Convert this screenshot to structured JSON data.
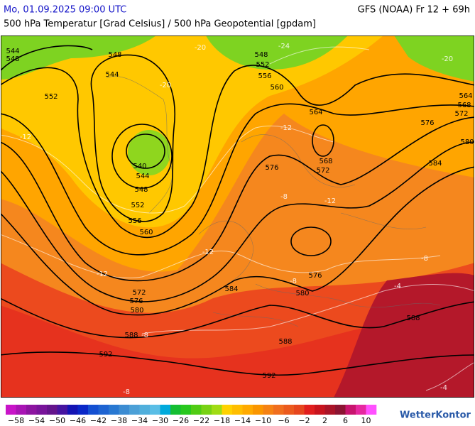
{
  "header": {
    "datetime": "Mo, 01.09.2025 09:00 UTC",
    "model": "GFS (NOAA) Fr 12 + 69h",
    "subtitle": "500 hPa Temperatur [Grad Celsius] / 500 hPa Geopotential [gpdam]"
  },
  "map": {
    "contour_labels": [
      "544",
      "548",
      "548",
      "544",
      "552",
      "540",
      "544",
      "548",
      "552",
      "556",
      "560",
      "548",
      "552",
      "556",
      "560",
      "564",
      "568",
      "572",
      "576",
      "576",
      "580",
      "584",
      "564",
      "568",
      "572",
      "572",
      "576",
      "580",
      "584",
      "588",
      "588",
      "588",
      "580",
      "576",
      "592",
      "592"
    ],
    "temperature_labels": [
      "-24",
      "-20",
      "-20",
      "-12",
      "-12",
      "-12",
      "-8",
      "-12",
      "-12",
      "-8",
      "-8",
      "-4",
      "-8",
      "-4",
      "-8",
      "-20"
    ]
  },
  "colorbar": {
    "colors": [
      "#c814c8",
      "#a814b4",
      "#8c14a0",
      "#78149a",
      "#64148c",
      "#4614a0",
      "#1414b4",
      "#0a28c8",
      "#1450d2",
      "#1e64d2",
      "#2878d2",
      "#3c8cd2",
      "#4ba0d7",
      "#50afdc",
      "#5abee6",
      "#00aadc",
      "#14be32",
      "#28c81e",
      "#50cc14",
      "#78d214",
      "#a0dc14",
      "#ffd200",
      "#ffbe00",
      "#ffaa00",
      "#fa9600",
      "#f58214",
      "#f06e1e",
      "#eb5a1e",
      "#e6461e",
      "#e11e1e",
      "#c8141e",
      "#aa1428",
      "#8c1432",
      "#c8146e",
      "#e628a0",
      "#ff50ff"
    ],
    "labels": [
      "−58",
      "−54",
      "−50",
      "−46",
      "−42",
      "−38",
      "−34",
      "−30",
      "−26",
      "−22",
      "−18",
      "−14",
      "−10",
      "−6",
      "−2",
      "2",
      "6",
      "10"
    ]
  },
  "logo": "WetterKontor"
}
